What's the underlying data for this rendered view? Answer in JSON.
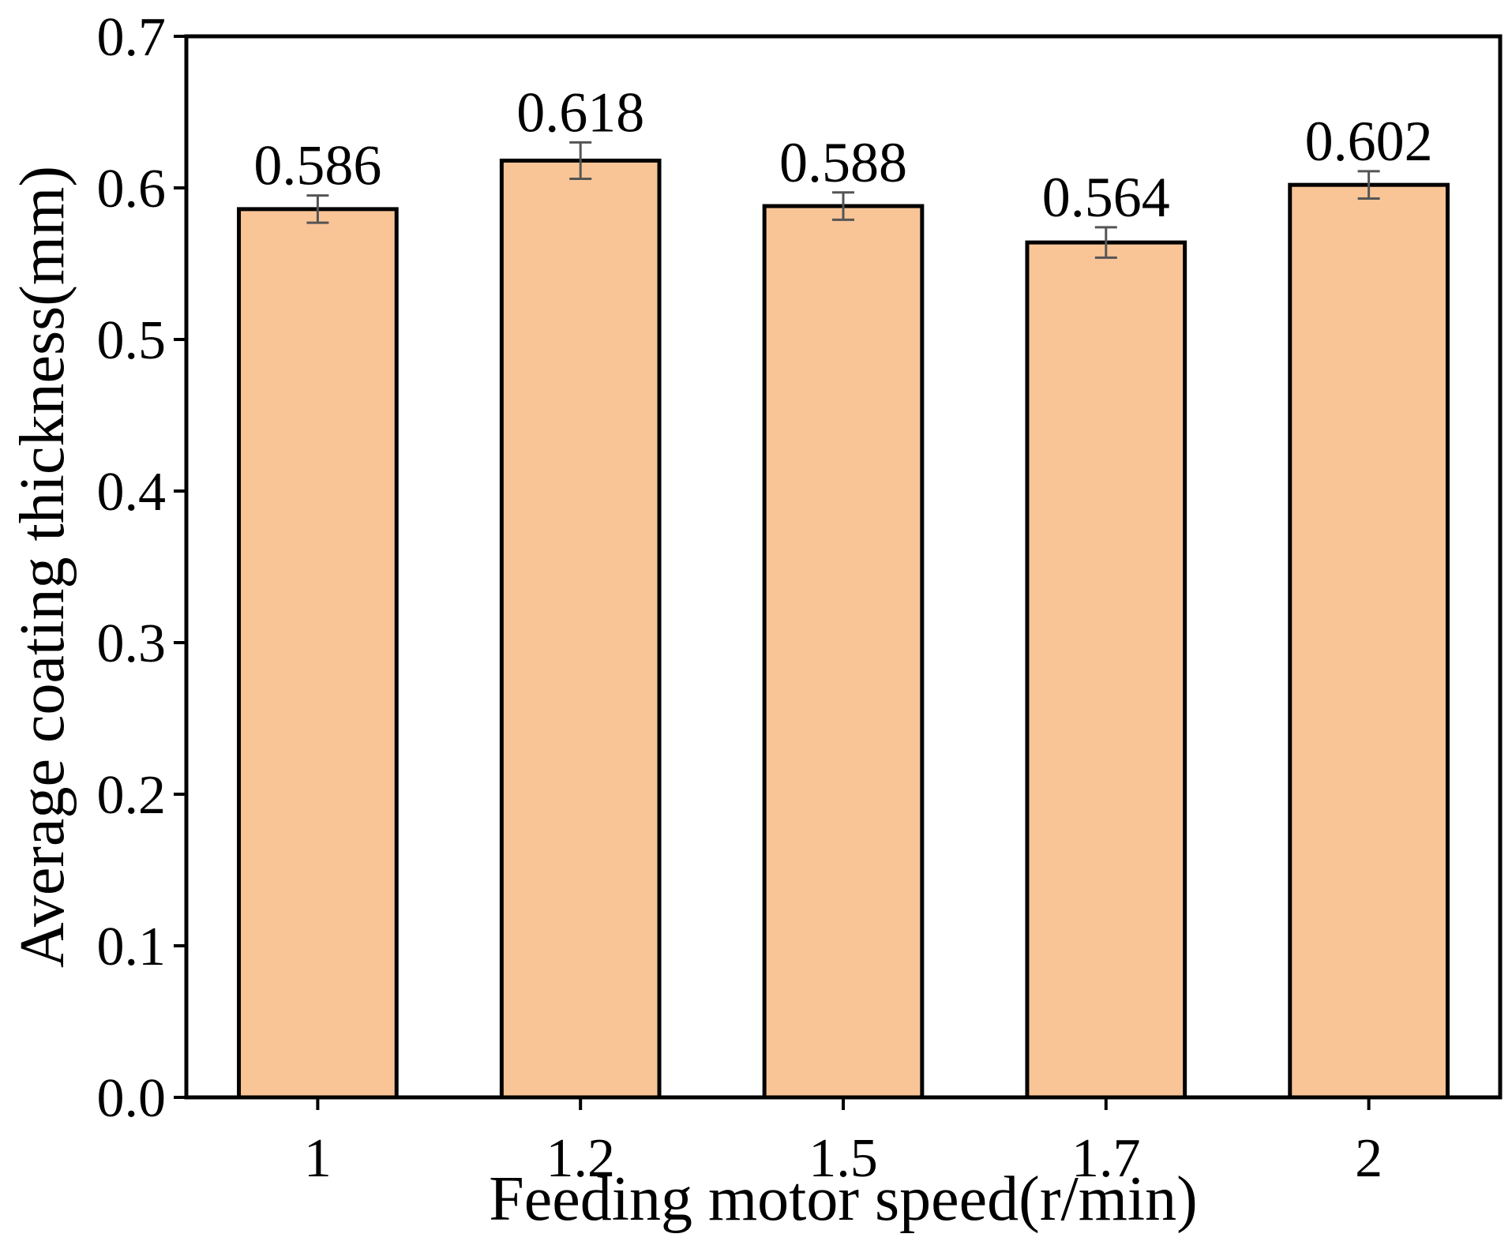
{
  "chart_data": {
    "type": "bar",
    "title": "",
    "xlabel": "Feeding motor speed(r/min)",
    "ylabel": "Average coating thickness(mm)",
    "categories": [
      "1",
      "1.2",
      "1.5",
      "1.7",
      "2"
    ],
    "values": [
      0.586,
      0.618,
      0.588,
      0.564,
      0.602
    ],
    "errors": [
      0.009,
      0.012,
      0.009,
      0.01,
      0.009
    ],
    "data_labels": [
      "0.586",
      "0.618",
      "0.588",
      "0.564",
      "0.602"
    ],
    "ylim": [
      0,
      0.7
    ],
    "yticks": [
      0.0,
      0.1,
      0.2,
      0.3,
      0.4,
      0.5,
      0.6,
      0.7
    ],
    "ytick_labels": [
      "0.0",
      "0.1",
      "0.2",
      "0.3",
      "0.4",
      "0.5",
      "0.6",
      "0.7"
    ],
    "grid": false,
    "legend": "none",
    "colors": {
      "bar_fill": "#F9C597",
      "bar_edge": "#000000",
      "error_bar": "#555555",
      "axis": "#000000"
    }
  }
}
